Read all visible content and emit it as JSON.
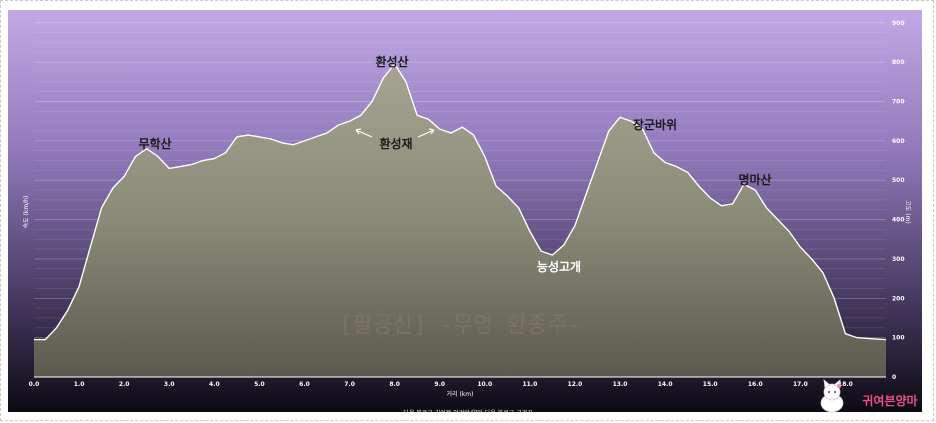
{
  "chart_data": {
    "type": "area",
    "xlabel": "거리 (km)",
    "ylabel_left": "속도 (km/h)",
    "ylabel_right": "고도 (m)",
    "x_ticks": [
      "0.0",
      "1.0",
      "2.0",
      "3.0",
      "4.0",
      "5.0",
      "6.0",
      "7.0",
      "8.0",
      "9.0",
      "10.0",
      "11.0",
      "12.0",
      "13.0",
      "14.0",
      "15.0",
      "16.0",
      "17.0",
      "18.0"
    ],
    "y_ticks": [
      "0",
      "100",
      "200",
      "300",
      "400",
      "500",
      "600",
      "700",
      "800",
      "900"
    ],
    "xlim": [
      0,
      18.9
    ],
    "ylim": [
      0,
      930
    ],
    "grid": true,
    "colors": {
      "fill": "#8a8a78",
      "line": "#ffffff",
      "bg_top": "#c2a9e6",
      "bg_bottom": "#0d0a14",
      "accent": "#e8508a"
    },
    "series": [
      {
        "x": [
          0.0,
          0.25,
          0.5,
          0.75,
          1.0,
          1.25,
          1.5,
          1.75,
          2.0,
          2.25,
          2.5,
          2.75,
          3.0,
          3.25,
          3.5,
          3.75,
          4.0,
          4.25,
          4.5,
          4.75,
          5.0,
          5.25,
          5.5,
          5.75,
          6.0,
          6.25,
          6.5,
          6.75,
          7.0,
          7.25,
          7.5,
          7.75,
          8.0,
          8.25,
          8.5,
          8.75,
          9.0,
          9.25,
          9.5,
          9.75,
          10.0,
          10.25,
          10.5,
          10.75,
          11.0,
          11.25,
          11.5,
          11.75,
          12.0,
          12.25,
          12.5,
          12.75,
          13.0,
          13.25,
          13.5,
          13.75,
          14.0,
          14.25,
          14.5,
          14.75,
          15.0,
          15.25,
          15.5,
          15.75,
          16.0,
          16.25,
          16.5,
          16.75,
          17.0,
          17.25,
          17.5,
          17.75,
          18.0,
          18.25,
          18.5,
          18.75,
          18.9
        ],
        "y": [
          95,
          95,
          125,
          170,
          230,
          330,
          430,
          480,
          510,
          560,
          580,
          560,
          530,
          535,
          540,
          550,
          555,
          570,
          610,
          615,
          610,
          605,
          595,
          590,
          600,
          610,
          620,
          640,
          650,
          665,
          700,
          760,
          795,
          750,
          665,
          655,
          630,
          620,
          635,
          615,
          560,
          485,
          460,
          430,
          370,
          320,
          310,
          335,
          385,
          465,
          545,
          625,
          660,
          650,
          630,
          570,
          545,
          535,
          520,
          485,
          455,
          435,
          440,
          490,
          475,
          430,
          400,
          370,
          330,
          300,
          265,
          200,
          110,
          100,
          98,
          96,
          95
        ]
      }
    ],
    "annotations": [
      "무학산",
      "환성산",
      "환성재",
      "능성고개",
      "장군바위",
      "명마산"
    ],
    "watermark": "[팔공산] -무명 환종주-",
    "footer": "다음 블로그 귀여븐 안경알/양마 다음 블로그 구경꾼",
    "blog_logo": "귀여븐양마"
  }
}
